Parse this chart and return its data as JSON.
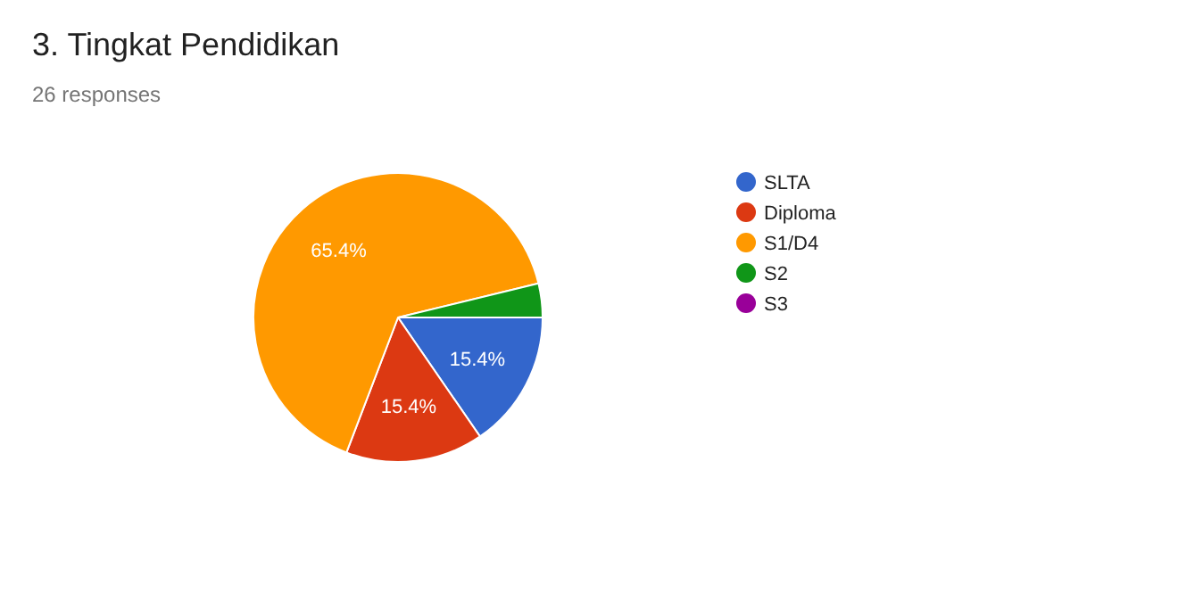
{
  "chart_data": {
    "type": "pie",
    "title": "3. Tingkat Pendidikan",
    "subtitle": "26 responses",
    "categories": [
      "SLTA",
      "Diploma",
      "S1/D4",
      "S2",
      "S3"
    ],
    "values": [
      15.4,
      15.4,
      65.4,
      3.8,
      0
    ],
    "colors": [
      "#3366cc",
      "#dc3912",
      "#ff9900",
      "#109618",
      "#990099"
    ],
    "value_labels": [
      "15.4%",
      "15.4%",
      "65.4%",
      null,
      null
    ],
    "legend": "right"
  }
}
